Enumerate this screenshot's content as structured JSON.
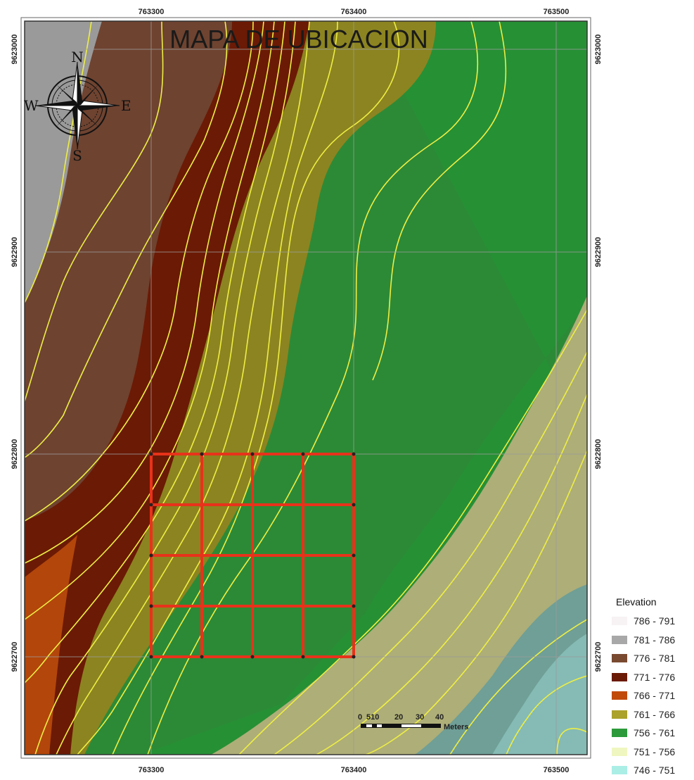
{
  "map": {
    "title": "MAPA DE UBICACION",
    "compass": {
      "n": "N",
      "s": "S",
      "e": "E",
      "w": "W"
    },
    "x_ticks": [
      "763300",
      "763400",
      "763500"
    ],
    "y_ticks": [
      "9623000",
      "9622900",
      "9622800",
      "9622700"
    ],
    "scale_bar": {
      "labels": [
        "0",
        "510",
        "20",
        "30",
        "40"
      ],
      "unit": "Meters"
    }
  },
  "legend": {
    "title": "Elevation",
    "items": [
      {
        "label": "786 - 791",
        "color": "#f7f2f4"
      },
      {
        "label": "781 - 786",
        "color": "#a8a8a8"
      },
      {
        "label": "776 - 781",
        "color": "#7a4a30"
      },
      {
        "label": "771 - 776",
        "color": "#6b1a05"
      },
      {
        "label": "766 - 771",
        "color": "#c24a08"
      },
      {
        "label": "761 - 766",
        "color": "#aaa22a"
      },
      {
        "label": "756 - 761",
        "color": "#2c9a3a"
      },
      {
        "label": "751 - 756",
        "color": "#f0f6c0"
      },
      {
        "label": "746 - 751",
        "color": "#aaeee6"
      }
    ]
  },
  "colors": {
    "contour": "#eeee44",
    "grid_overlay": "#e8321a",
    "graticule": "#9c9c9c"
  }
}
